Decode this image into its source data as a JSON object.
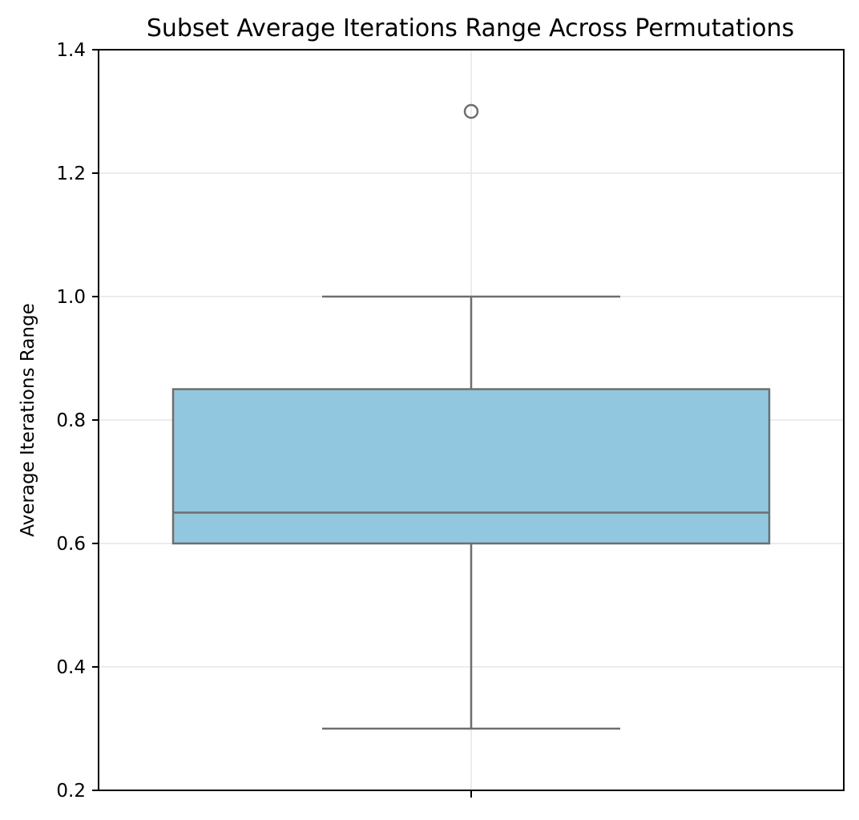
{
  "chart_data": {
    "type": "box",
    "title": "Subset Average Iterations Range Across Permutations",
    "xlabel": "",
    "ylabel": "Average Iterations Range",
    "ylim": [
      0.2,
      1.4
    ],
    "yticks": [
      0.2,
      0.4,
      0.6,
      0.8,
      1.0,
      1.2,
      1.4
    ],
    "ytick_labels": [
      "0.2",
      "0.4",
      "0.6",
      "0.8",
      "1.0",
      "1.2",
      "1.4"
    ],
    "grid": true,
    "box": {
      "whisker_low": 0.3,
      "q1": 0.6,
      "median": 0.65,
      "q3": 0.85,
      "whisker_high": 1.0,
      "outliers": [
        1.3
      ]
    },
    "colors": {
      "box_fill": "#92c8df",
      "box_edge": "#6e6e6e",
      "grid": "#e6e6e6",
      "axis": "#000000"
    }
  }
}
